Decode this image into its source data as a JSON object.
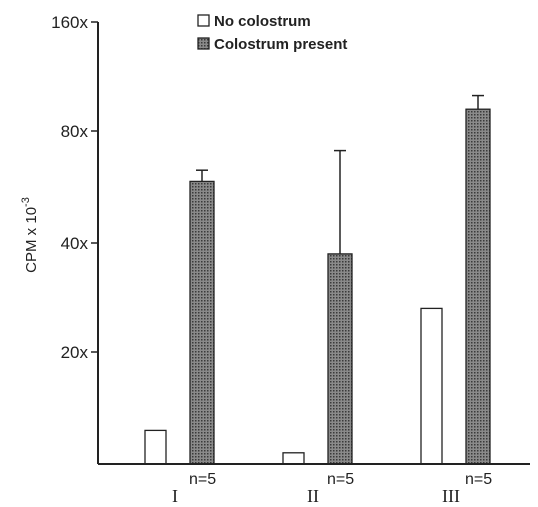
{
  "chart_data": {
    "type": "bar",
    "ylabel": "CPM x 10",
    "ylabel_exp": "-3",
    "yscale": "log",
    "ylim": [
      10,
      160
    ],
    "yticks": [
      20,
      40,
      80,
      160
    ],
    "ytick_labels": [
      "20x",
      "40x",
      "80x",
      "160x"
    ],
    "categories": [
      "I",
      "II",
      "III"
    ],
    "n_labels": [
      "n=5",
      "n=5",
      "n=5"
    ],
    "legend_position": "top-center",
    "series": [
      {
        "name": "No colostrum",
        "color": "#ffffff",
        "values": [
          13,
          11,
          28
        ]
      },
      {
        "name": "Colostrum present",
        "color": "#555555",
        "values": [
          62,
          38,
          96
        ],
        "errors_upper": [
          66,
          73,
          106
        ]
      }
    ]
  }
}
